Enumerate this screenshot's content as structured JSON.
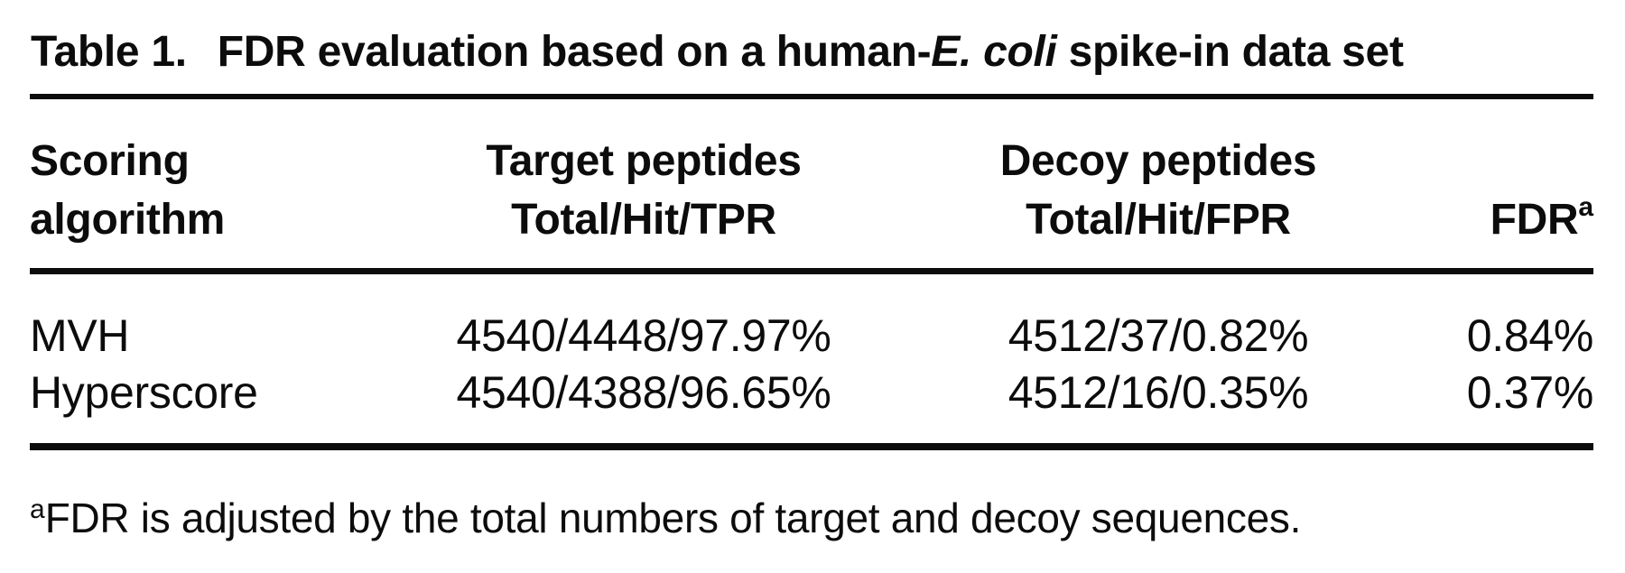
{
  "colors": {
    "text": "#0c0c0c",
    "background": "#ffffff",
    "rule": "#0c0c0c"
  },
  "table": {
    "caption": {
      "label": "Table 1.",
      "text_before_italic": "FDR evaluation based on a human-",
      "italic_text": "E. coli",
      "text_after_italic": " spike-in data set"
    },
    "columns": [
      {
        "line1": "Scoring",
        "line2": "algorithm",
        "superscript": ""
      },
      {
        "line1": "Target peptides",
        "line2": "Total/Hit/TPR",
        "superscript": ""
      },
      {
        "line1": "Decoy peptides",
        "line2": "Total/Hit/FPR",
        "superscript": ""
      },
      {
        "line1": "",
        "line2": "FDR",
        "superscript": "a"
      }
    ],
    "rows": [
      {
        "algorithm": "MVH",
        "target_peptides": "4540/4448/97.97%",
        "decoy_peptides": "4512/37/0.82%",
        "fdr": "0.84%"
      },
      {
        "algorithm": "Hyperscore",
        "target_peptides": "4540/4388/96.65%",
        "decoy_peptides": "4512/16/0.35%",
        "fdr": "0.37%"
      }
    ],
    "footnote": {
      "superscript": "a",
      "text": "FDR is adjusted by the total numbers of target and decoy sequences."
    }
  }
}
